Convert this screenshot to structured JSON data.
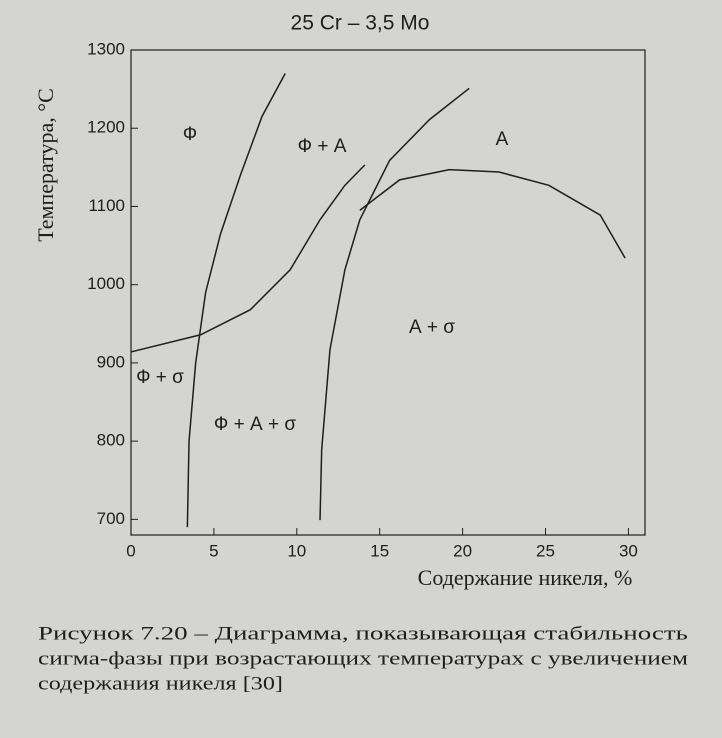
{
  "chart_data": {
    "type": "line",
    "title": "25 Cr – 3,5 Mo",
    "y_label": "Температура, °С",
    "x_label": "Содержание никеля, %",
    "xlim": [
      0,
      31
    ],
    "ylim": [
      680,
      1300
    ],
    "xticks": [
      0,
      5,
      10,
      15,
      20,
      25,
      30
    ],
    "yticks": [
      700,
      800,
      900,
      1000,
      1100,
      1200,
      1300
    ],
    "color": "#1e1e1e",
    "series": [
      {
        "x": [
          3.4,
          3.5,
          3.9,
          4.5,
          5.4,
          6.6,
          7.9,
          9.3
        ],
        "values": [
          690,
          800,
          900,
          990,
          1065,
          1140,
          1215,
          1270
        ]
      },
      {
        "x": [
          0,
          4.2,
          7.2,
          9.6,
          11.4,
          12.9,
          14.1
        ],
        "values": [
          914,
          936,
          968,
          1019,
          1083,
          1127,
          1153
        ]
      },
      {
        "x": [
          11.4,
          11.5,
          12.0,
          12.9,
          13.8,
          15.6,
          18.0,
          20.4
        ],
        "values": [
          699,
          789,
          917,
          1019,
          1083,
          1159,
          1211,
          1251
        ]
      },
      {
        "x": [
          13.8,
          16.2,
          19.2,
          22.2,
          25.2,
          28.3,
          29.8
        ],
        "values": [
          1095,
          1134,
          1147,
          1144,
          1127,
          1089,
          1034
        ]
      }
    ],
    "annotations": [
      "Ф",
      "Ф + А",
      "А",
      "А + σ",
      "Ф + σ",
      "Ф + А + σ"
    ],
    "caption": [
      "Рисунок 7.20 – Диаграмма, показывающая стабильность",
      "сигма-фазы при возрастающих температурах с увеличением",
      "содержания никеля [30]"
    ]
  }
}
